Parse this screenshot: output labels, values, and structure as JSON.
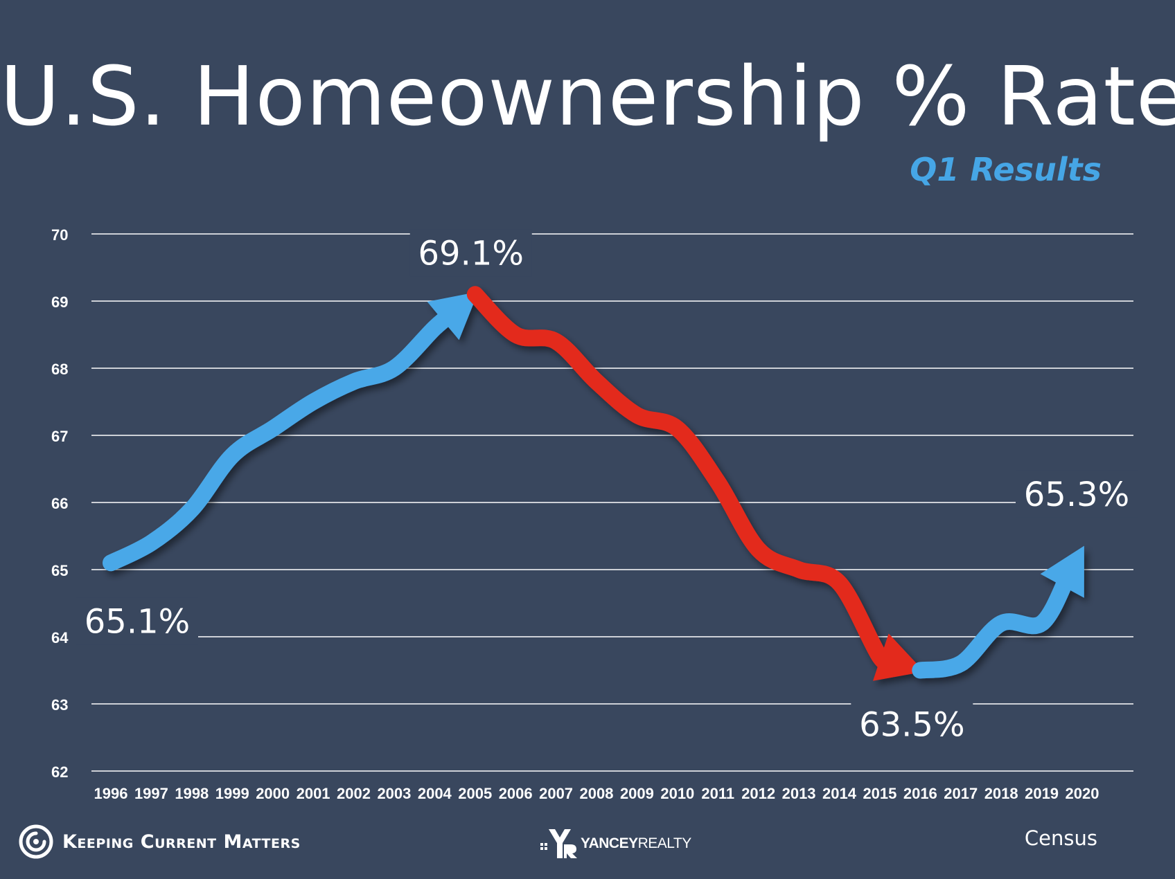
{
  "chart_data": {
    "type": "line",
    "title": "U.S. Homeownership % Rates",
    "subtitle": "Q1 Results",
    "x": [
      "1996",
      "1997",
      "1998",
      "1999",
      "2000",
      "2001",
      "2002",
      "2003",
      "2004",
      "2005",
      "2006",
      "2007",
      "2008",
      "2009",
      "2010",
      "2011",
      "2012",
      "2013",
      "2014",
      "2015",
      "2016",
      "2017",
      "2018",
      "2019",
      "2020"
    ],
    "series": [
      {
        "values": [
          65.1,
          65.4,
          65.9,
          66.7,
          67.1,
          67.5,
          67.8,
          68.0,
          68.6,
          69.1,
          68.5,
          68.4,
          67.8,
          67.3,
          67.1,
          66.3,
          65.3,
          65.0,
          64.8,
          63.7,
          63.5,
          63.6,
          64.2,
          64.2,
          65.3
        ]
      }
    ],
    "ylim": [
      62,
      70
    ],
    "yticks": [
      "62",
      "63",
      "64",
      "65",
      "66",
      "67",
      "68",
      "69",
      "70"
    ],
    "grid": true,
    "annotations": [
      {
        "label": "65.1%",
        "x": "1996",
        "y": 65.1
      },
      {
        "label": "69.1%",
        "x": "2005",
        "y": 69.1
      },
      {
        "label": "63.5%",
        "x": "2016",
        "y": 63.5
      },
      {
        "label": "65.3%",
        "x": "2020",
        "y": 65.3
      }
    ],
    "segments": [
      {
        "from": "1996",
        "to": "2005",
        "color": "#4aa8e8",
        "direction": "up"
      },
      {
        "from": "2005",
        "to": "2016",
        "color": "#e32b1e",
        "direction": "down"
      },
      {
        "from": "2016",
        "to": "2020",
        "color": "#4aa8e8",
        "direction": "up"
      }
    ]
  },
  "colors": {
    "background": "#39475e",
    "grid": "#ffffff",
    "text": "#ffffff",
    "accent_blue": "#4aa8e8",
    "accent_red": "#e32b1e"
  },
  "footer": {
    "brand": "Keeping Current Matters",
    "brand_icon": "kcm-swirl-icon",
    "partner_bold": "YANCEY",
    "partner_light": "REALTY",
    "partner_icon": "yancey-realty-icon",
    "source": "Census"
  }
}
